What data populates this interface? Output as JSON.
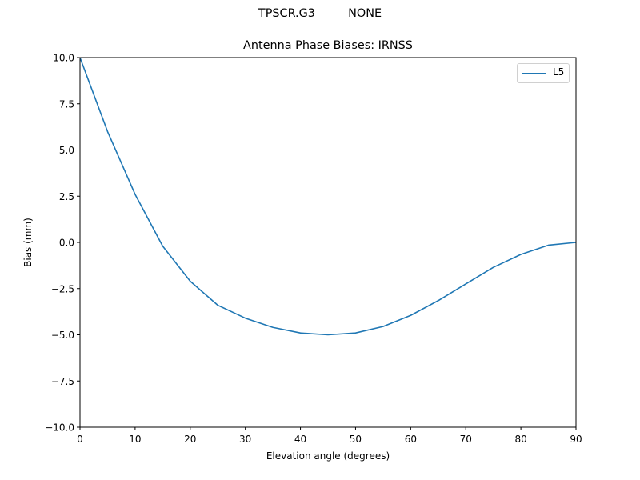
{
  "figure": {
    "suptitle": "TPSCR.G3         NONE",
    "title": "Antenna Phase Biases: IRNSS"
  },
  "legend": {
    "entries": [
      {
        "label": "L5",
        "color": "#1f77b4"
      }
    ]
  },
  "axes": {
    "xlabel": "Elevation angle (degrees)",
    "ylabel": "Bias (mm)",
    "xticks": [
      "0",
      "10",
      "20",
      "30",
      "40",
      "50",
      "60",
      "70",
      "80",
      "90"
    ],
    "yticks": [
      "10.0",
      "7.5",
      "5.0",
      "2.5",
      "0.0",
      "−2.5",
      "−5.0",
      "−7.5",
      "−10.0"
    ]
  },
  "chart_data": {
    "type": "line",
    "title": "Antenna Phase Biases: IRNSS",
    "suptitle": "TPSCR.G3         NONE",
    "xlabel": "Elevation angle (degrees)",
    "ylabel": "Bias (mm)",
    "xlim": [
      0,
      90
    ],
    "ylim": [
      -10,
      10
    ],
    "grid": false,
    "legend_position": "upper right",
    "x": [
      0,
      5,
      10,
      15,
      20,
      25,
      30,
      35,
      40,
      45,
      50,
      55,
      60,
      65,
      70,
      75,
      80,
      85,
      90
    ],
    "series": [
      {
        "name": "L5",
        "color": "#1f77b4",
        "values": [
          10.0,
          6.0,
          2.6,
          -0.2,
          -2.1,
          -3.4,
          -4.1,
          -4.6,
          -4.9,
          -5.0,
          -4.9,
          -4.55,
          -3.95,
          -3.15,
          -2.25,
          -1.35,
          -0.65,
          -0.15,
          0.0
        ]
      }
    ]
  }
}
